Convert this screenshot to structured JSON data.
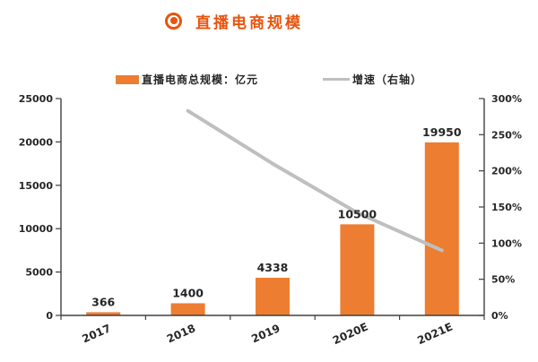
{
  "title": {
    "text": "直播电商规模"
  },
  "legend": {
    "bar_label": "直播电商总规模：亿元",
    "line_label": "增速（右轴）"
  },
  "colors": {
    "title": "#E8540E",
    "bar": "#ED7D31",
    "line": "#BFBFBF",
    "axis": "#404040",
    "text": "#262626",
    "background": "#FFFFFF"
  },
  "chart_data": {
    "type": "bar",
    "combo": "bar+line",
    "title": "直播电商规模",
    "categories": [
      "2017",
      "2018",
      "2019",
      "2020E",
      "2021E"
    ],
    "series": [
      {
        "name": "直播电商总规模：亿元",
        "type": "bar",
        "axis": "left",
        "color": "#ED7D31",
        "values": [
          366,
          1400,
          4338,
          10500,
          19950
        ],
        "data_labels": [
          "366",
          "1400",
          "4338",
          "10500",
          "19950"
        ]
      },
      {
        "name": "增速（右轴）",
        "type": "line",
        "axis": "right",
        "color": "#BFBFBF",
        "values": [
          null,
          283,
          210,
          142,
          90
        ],
        "unit": "%"
      }
    ],
    "left_axis": {
      "min": 0,
      "max": 25000,
      "step": 5000,
      "ticks": [
        "0",
        "5000",
        "10000",
        "15000",
        "20000",
        "25000"
      ]
    },
    "right_axis": {
      "min": 0,
      "max": 300,
      "step": 50,
      "ticks": [
        "0%",
        "50%",
        "100%",
        "150%",
        "200%",
        "250%",
        "300%"
      ]
    },
    "grid": false,
    "legend_position": "top",
    "x_label_rotation": -24
  }
}
